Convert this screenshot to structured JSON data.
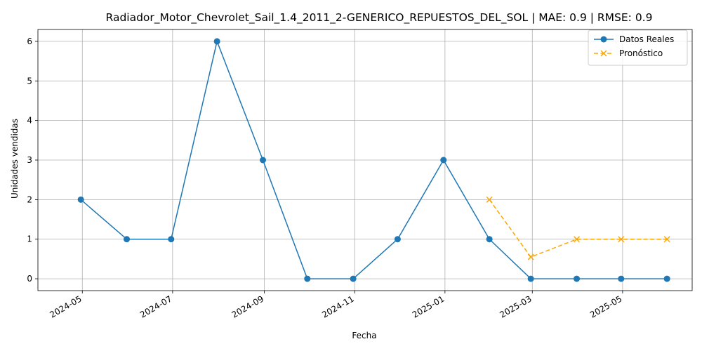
{
  "chart_data": {
    "type": "line",
    "title": "Radiador_Motor_Chevrolet_Sail_1.4_2011_2-GENERICO_REPUESTOS_DEL_SOL | MAE: 0.9 | RMSE: 0.9",
    "xlabel": "Fecha",
    "ylabel": "Unidades vendidas",
    "ylim": [
      -0.3,
      6.3
    ],
    "xlim": [
      "2024-04-01",
      "2025-06-17"
    ],
    "grid": true,
    "legend_position": "top-right",
    "x_ticks": [
      "2024-05-01",
      "2024-07-01",
      "2024-09-01",
      "2024-11-01",
      "2025-01-01",
      "2025-03-01",
      "2025-05-01"
    ],
    "x_tick_labels": [
      "2024-05",
      "2024-07",
      "2024-09",
      "2024-11",
      "2025-01",
      "2025-03",
      "2025-05"
    ],
    "y_ticks": [
      0,
      1,
      2,
      3,
      4,
      5,
      6
    ],
    "y_tick_labels": [
      "0",
      "1",
      "2",
      "3",
      "4",
      "5",
      "6"
    ],
    "series": [
      {
        "name": "Datos Reales",
        "color": "#1f77b4",
        "marker": "circle",
        "style": "solid",
        "x": [
          "2024-04-30",
          "2024-05-31",
          "2024-06-30",
          "2024-07-31",
          "2024-08-31",
          "2024-09-30",
          "2024-10-31",
          "2024-11-30",
          "2024-12-31",
          "2025-01-31",
          "2025-02-28",
          "2025-03-31",
          "2025-04-30",
          "2025-05-31"
        ],
        "values": [
          2,
          1,
          1,
          6,
          3,
          0,
          0,
          1,
          3,
          1,
          0,
          0,
          0,
          0
        ]
      },
      {
        "name": "Pronóstico",
        "color": "#ffa500",
        "marker": "x",
        "style": "dashed",
        "x": [
          "2025-01-31",
          "2025-02-28",
          "2025-03-31",
          "2025-04-30",
          "2025-05-31"
        ],
        "values": [
          2,
          0.55,
          1,
          1,
          1
        ]
      }
    ]
  }
}
